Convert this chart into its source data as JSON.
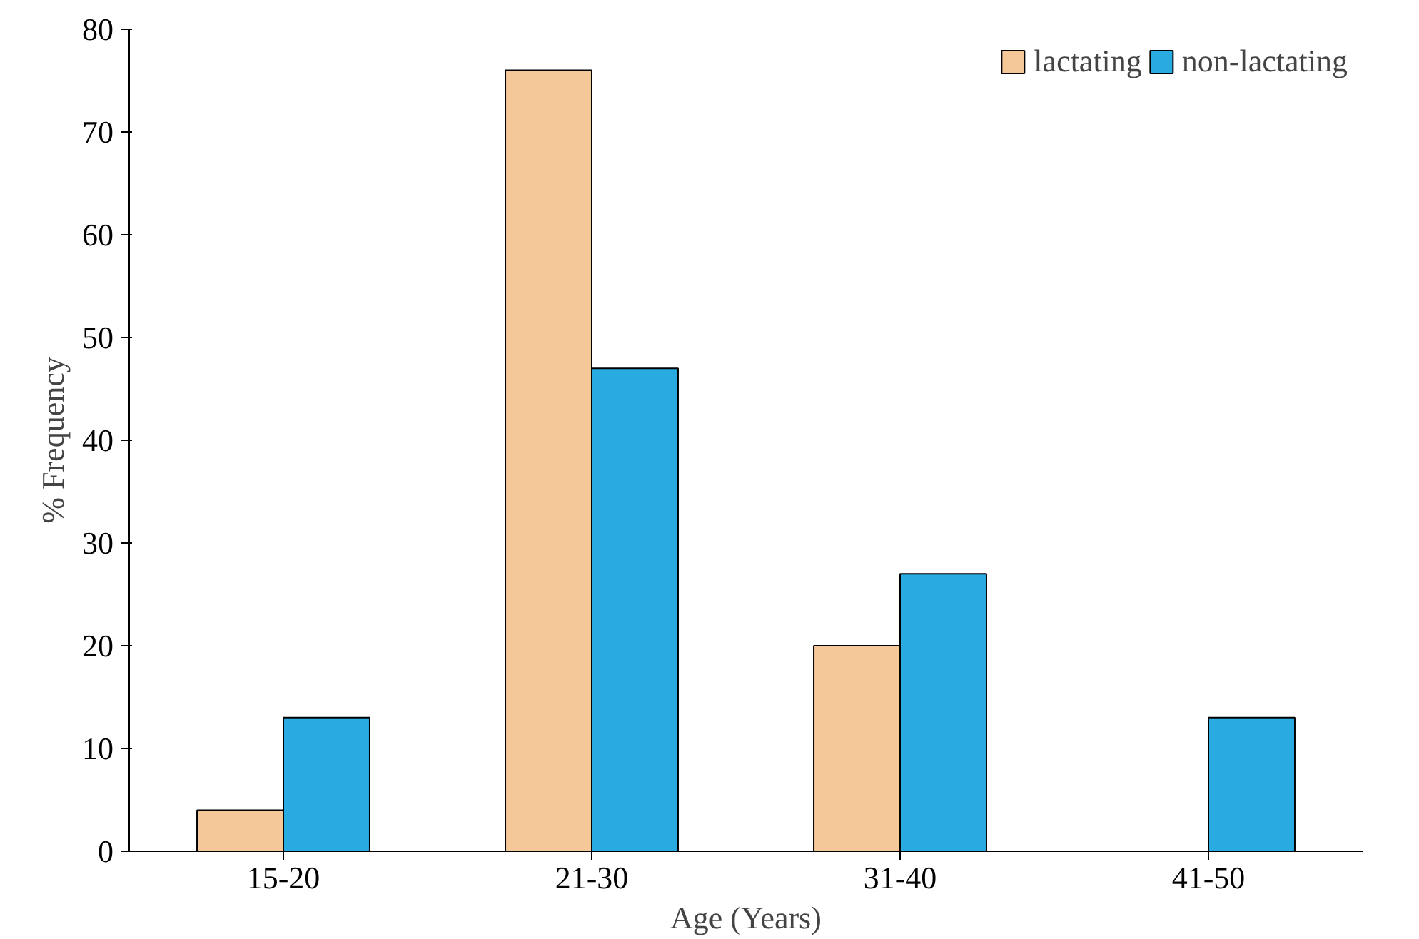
{
  "chart_data": {
    "type": "bar",
    "xlabel": "Age (Years)",
    "ylabel": "% Frequency",
    "categories": [
      "15-20",
      "21-30",
      "31-40",
      "41-50"
    ],
    "series": [
      {
        "name": "lactating",
        "color": "#f5c89a",
        "values": [
          4,
          76,
          20,
          null
        ]
      },
      {
        "name": "non-lactating",
        "color": "#29abe2",
        "values": [
          13,
          47,
          27,
          13
        ]
      }
    ],
    "ylim": [
      0,
      80
    ],
    "yticks": [
      0,
      10,
      20,
      30,
      40,
      50,
      60,
      70,
      80
    ],
    "grid": false,
    "legend": "top right"
  }
}
